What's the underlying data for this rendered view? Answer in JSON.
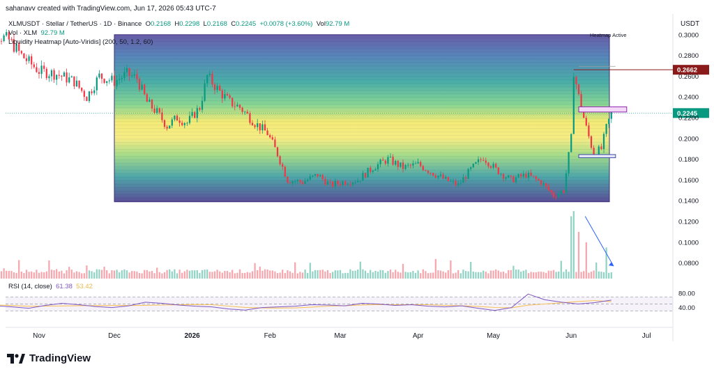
{
  "header": {
    "attribution": "sahanavv created with TradingView.com, Jun 17, 2026 05:43 UTC-7",
    "symbol": "XLMUSDT · Stellar / TetherUS · 1D · Binance",
    "o_label": "O",
    "o": "0.2168",
    "h_label": "H",
    "h": "0.2298",
    "l_label": "L",
    "l": "0.2168",
    "c_label": "C",
    "c": "0.2245",
    "change": "+0.0078 (+3.60%)",
    "vol_label": "Vol",
    "vol": "92.79 M",
    "vol_indicator": "Vol · XLM",
    "vol_value": "92.79 M",
    "heatmap_indicator": "Liquidity Heatmap [Auto-Viridis] (200, 50, 1.2, 60)",
    "heatmap_status": "Heatmap Active",
    "currency": "USDT"
  },
  "rsi": {
    "label": "RSI (14, close)",
    "value": "61.38",
    "ma": "53.42"
  },
  "brand": {
    "name": "TradingView"
  },
  "colors": {
    "up": "#089981",
    "down": "#f23645",
    "rsi_line": "#7e57c2",
    "rsi_ma": "#f7c25c",
    "resistance": "#8b1a1a",
    "price_tag": "#089981"
  },
  "chart_data": {
    "type": "candlestick",
    "x_ticks": [
      "Nov",
      "Dec",
      "2026",
      "Feb",
      "Mar",
      "Apr",
      "May",
      "Jun",
      "Jul"
    ],
    "y_ticks": [
      "0.3000",
      "0.2800",
      "0.2600",
      "0.2400",
      "0.2200",
      "0.2000",
      "0.1800",
      "0.1600",
      "0.1400",
      "0.1200",
      "0.1000",
      "0.0800"
    ],
    "ylim": [
      0.065,
      0.32
    ],
    "last_price": "0.2245",
    "resistance_level": "0.2662",
    "heatmap_range": [
      0.139,
      0.3
    ],
    "heatmap_start": "Dec",
    "rsi_ticks": [
      "80.00",
      "40.00"
    ],
    "rsi_range": [
      0,
      100
    ],
    "close_path": [
      [
        "Oct 8",
        0.315
      ],
      [
        "Oct 15",
        0.3
      ],
      [
        "Oct 20",
        0.295
      ],
      [
        "Oct 25",
        0.28
      ],
      [
        "Nov 1",
        0.265
      ],
      [
        "Nov 8",
        0.262
      ],
      [
        "Nov 15",
        0.255
      ],
      [
        "Nov 20",
        0.24
      ],
      [
        "Nov 25",
        0.26
      ],
      [
        "Dec 1",
        0.255
      ],
      [
        "Dec 6",
        0.262
      ],
      [
        "Dec 10",
        0.258
      ],
      [
        "Dec 14",
        0.235
      ],
      [
        "Dec 18",
        0.225
      ],
      [
        "Dec 22",
        0.212
      ],
      [
        "Dec 26",
        0.22
      ],
      [
        "Dec 30",
        0.215
      ],
      [
        "Jan 4",
        0.23
      ],
      [
        "Jan 7",
        0.26
      ],
      [
        "Jan 12",
        0.245
      ],
      [
        "Jan 16",
        0.235
      ],
      [
        "Jan 20",
        0.23
      ],
      [
        "Jan 26",
        0.215
      ],
      [
        "Jan 31",
        0.205
      ],
      [
        "Feb 4",
        0.185
      ],
      [
        "Feb 8",
        0.16
      ],
      [
        "Feb 14",
        0.158
      ],
      [
        "Feb 20",
        0.165
      ],
      [
        "Feb 25",
        0.155
      ],
      [
        "Mar 2",
        0.158
      ],
      [
        "Mar 8",
        0.16
      ],
      [
        "Mar 14",
        0.172
      ],
      [
        "Mar 20",
        0.18
      ],
      [
        "Mar 26",
        0.172
      ],
      [
        "Apr 1",
        0.175
      ],
      [
        "Apr 6",
        0.168
      ],
      [
        "Apr 12",
        0.16
      ],
      [
        "Apr 17",
        0.155
      ],
      [
        "Apr 22",
        0.17
      ],
      [
        "Apr 27",
        0.182
      ],
      [
        "May 2",
        0.17
      ],
      [
        "May 8",
        0.16
      ],
      [
        "May 14",
        0.165
      ],
      [
        "May 20",
        0.158
      ],
      [
        "May 25",
        0.145
      ],
      [
        "May 29",
        0.15
      ],
      [
        "Jun 1",
        0.2
      ],
      [
        "Jun 2",
        0.265
      ],
      [
        "Jun 4",
        0.24
      ],
      [
        "Jun 7",
        0.21
      ],
      [
        "Jun 10",
        0.185
      ],
      [
        "Jun 13",
        0.19
      ],
      [
        "Jun 15",
        0.21
      ],
      [
        "Jun 17",
        0.2245
      ]
    ],
    "volume": {
      "baseline": 0.07,
      "spikes": [
        [
          "Jun 1",
          0.125
        ],
        [
          "Jun 2",
          0.13
        ],
        [
          "Jun 4",
          0.11
        ],
        [
          "Jun 7",
          0.1
        ],
        [
          "Jun 15",
          0.095
        ]
      ]
    },
    "rsi_series": [
      50,
      45,
      42,
      38,
      46,
      52,
      48,
      43,
      40,
      45,
      55,
      52,
      47,
      44,
      42,
      36,
      33,
      40,
      42,
      44,
      48,
      47,
      45,
      52,
      50,
      46,
      48,
      44,
      42,
      45,
      38,
      32,
      40,
      78,
      62,
      55,
      50,
      54,
      61
    ]
  }
}
